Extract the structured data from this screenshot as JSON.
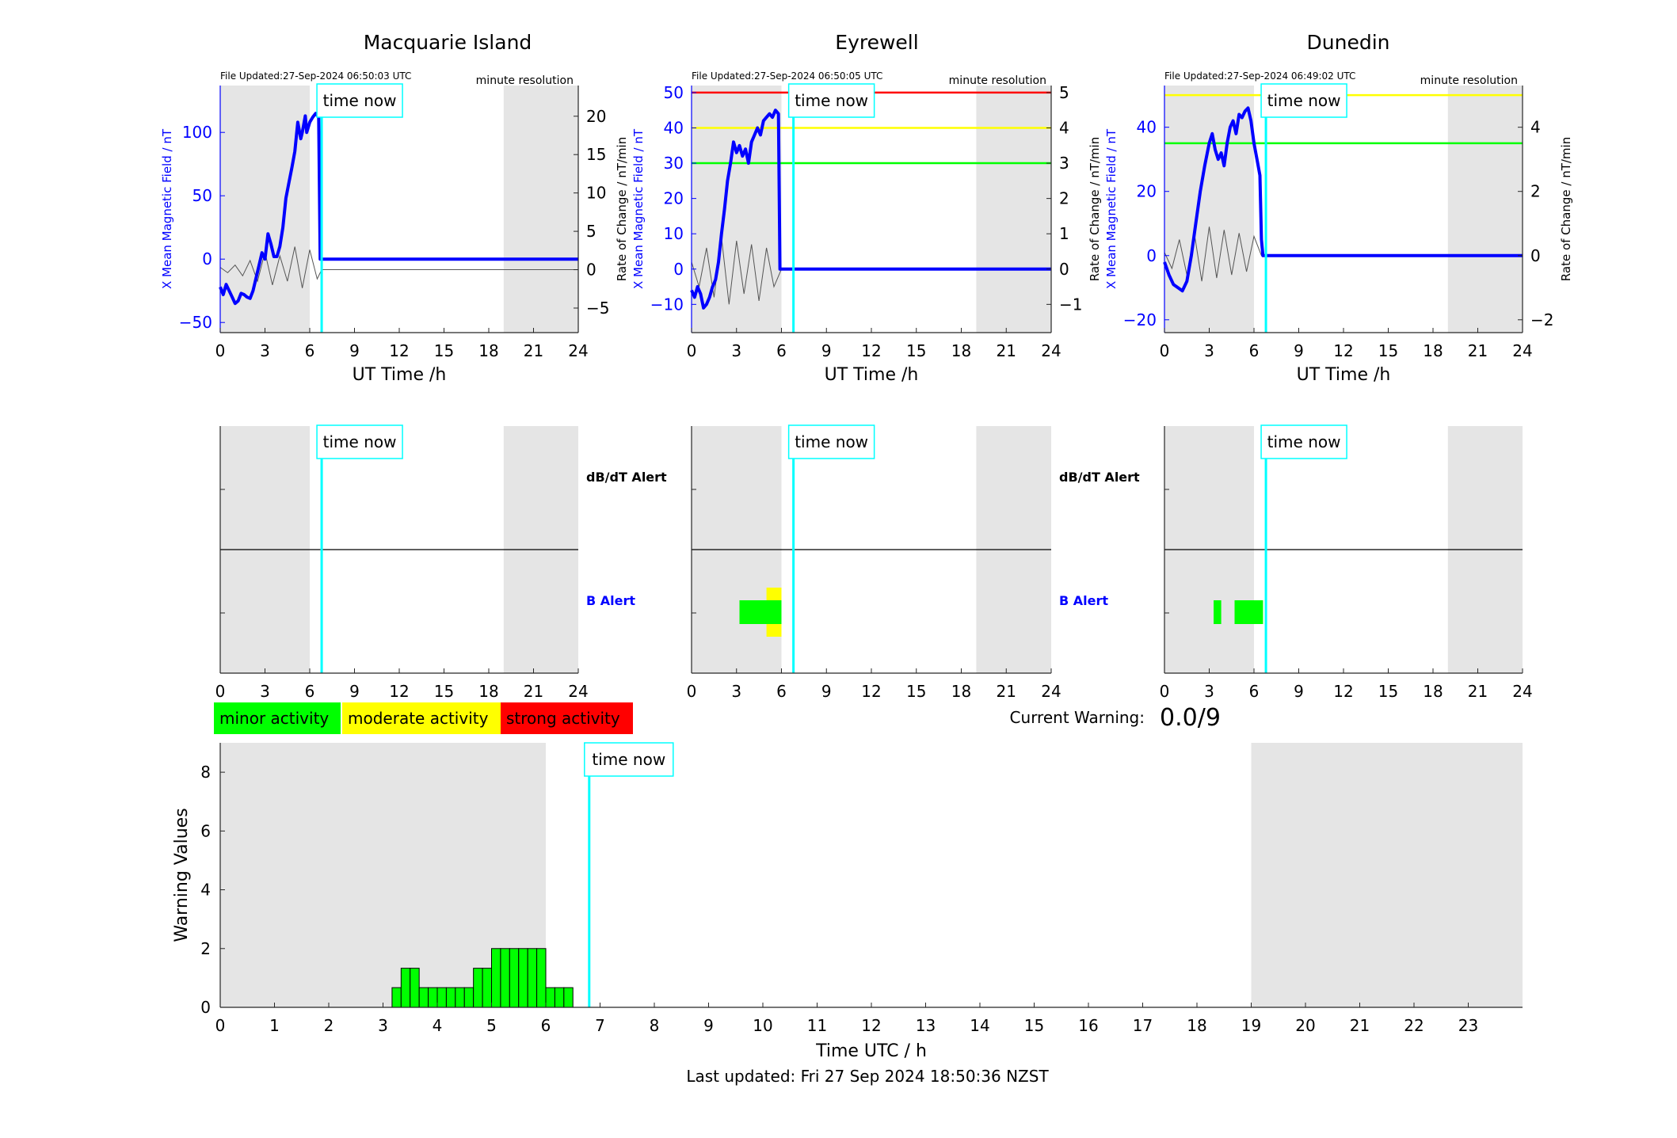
{
  "colors": {
    "night_shade": "#e5e5e5",
    "field_line": "#0000ff",
    "rate_line": "#555555",
    "time_now": "#00ffff",
    "minor": "#00ff00",
    "moderate": "#ffff00",
    "strong": "#ff0000",
    "bar_edge": "#007700"
  },
  "time_now_label": "time now",
  "legend": {
    "minor": "minor activity",
    "moderate": "moderate activity",
    "strong": "strong activity"
  },
  "current_warning": {
    "label": "Current Warning:",
    "value": "0.0/9"
  },
  "footer": "Last updated: Fri 27 Sep 2024 18:50:36 NZST",
  "chart_data": [
    {
      "type": "line",
      "title": "Macquarie Island",
      "file_updated": "File Updated:27-Sep-2024 06:50:03 UTC",
      "resolution": "minute resolution",
      "xlabel": "UT Time /h",
      "ylabel": "X Mean Magnetic Field / nT",
      "y2label": "Rate of Change / nT/min",
      "xlim": [
        0,
        24
      ],
      "ylim": [
        -58,
        137
      ],
      "y2lim": [
        -8.2,
        24
      ],
      "xticks": [
        0,
        3,
        6,
        9,
        12,
        15,
        18,
        21,
        24
      ],
      "yticks": [
        -50,
        0,
        50,
        100
      ],
      "y2ticks": [
        -5,
        0,
        5,
        10,
        15,
        20
      ],
      "night_bands": [
        [
          0,
          6
        ],
        [
          19,
          24
        ]
      ],
      "time_now": 6.8,
      "thresholds": [],
      "field_x": [
        0,
        0.2,
        0.4,
        0.6,
        0.8,
        1.0,
        1.2,
        1.4,
        1.6,
        1.8,
        2.0,
        2.2,
        2.5,
        2.8,
        3.0,
        3.2,
        3.4,
        3.6,
        3.8,
        4.0,
        4.2,
        4.4,
        4.6,
        4.8,
        5.0,
        5.2,
        5.4,
        5.5,
        5.7,
        5.8,
        6.0,
        6.2,
        6.4,
        6.6,
        6.7,
        24
      ],
      "field_y": [
        -22,
        -28,
        -20,
        -25,
        -30,
        -35,
        -33,
        -27,
        -28,
        -30,
        -31,
        -25,
        -10,
        5,
        0,
        20,
        12,
        2,
        2,
        10,
        25,
        48,
        60,
        72,
        85,
        108,
        95,
        100,
        113,
        100,
        108,
        112,
        115,
        112,
        0,
        0
      ],
      "rate_x": [
        0,
        0.5,
        1,
        1.5,
        2,
        2.5,
        3,
        3.5,
        4,
        4.5,
        5,
        5.5,
        6,
        6.5,
        6.8,
        24
      ],
      "rate_y": [
        0.3,
        -0.4,
        0.6,
        -0.8,
        1.2,
        -1.5,
        2.3,
        -2.0,
        1.8,
        -1.5,
        3.0,
        -2.4,
        2.6,
        -1.2,
        0,
        0
      ],
      "alert_blocks": []
    },
    {
      "type": "line",
      "title": "Eyrewell",
      "file_updated": "File Updated:27-Sep-2024 06:50:05 UTC",
      "resolution": "minute resolution",
      "xlabel": "UT Time /h",
      "ylabel": "X Mean Magnetic Field / nT",
      "y2label": "Rate of Change / nT/min",
      "xlim": [
        0,
        24
      ],
      "ylim": [
        -18,
        52
      ],
      "y2lim": [
        -1.8,
        5.2
      ],
      "xticks": [
        0,
        3,
        6,
        9,
        12,
        15,
        18,
        21,
        24
      ],
      "yticks": [
        -10,
        0,
        10,
        20,
        30,
        40,
        50
      ],
      "y2ticks": [
        -1,
        0,
        1,
        2,
        3,
        4,
        5
      ],
      "night_bands": [
        [
          0,
          6
        ],
        [
          19,
          24
        ]
      ],
      "time_now": 6.8,
      "thresholds": [
        {
          "value": 50,
          "color": "#ff0000"
        },
        {
          "value": 40,
          "color": "#ffff00"
        },
        {
          "value": 30,
          "color": "#00ff00"
        }
      ],
      "field_x": [
        0,
        0.2,
        0.4,
        0.6,
        0.8,
        1.0,
        1.2,
        1.4,
        1.6,
        1.8,
        2.0,
        2.2,
        2.4,
        2.6,
        2.8,
        3.0,
        3.2,
        3.4,
        3.6,
        3.8,
        4.0,
        4.2,
        4.4,
        4.6,
        4.8,
        5.0,
        5.2,
        5.4,
        5.6,
        5.8,
        5.9,
        24
      ],
      "field_y": [
        -6,
        -8,
        -5,
        -7,
        -11,
        -10,
        -8,
        -5,
        -3,
        2,
        10,
        17,
        25,
        30,
        36,
        33,
        35,
        32,
        34,
        30,
        36,
        38,
        40,
        38,
        42,
        43,
        44,
        43,
        45,
        44,
        0,
        0
      ],
      "rate_x": [
        0,
        0.5,
        1,
        1.5,
        2,
        2.5,
        3,
        3.5,
        4,
        4.5,
        5,
        5.5,
        6,
        24
      ],
      "rate_y": [
        0.2,
        -0.5,
        0.6,
        -0.8,
        0.9,
        -1.0,
        0.8,
        -0.7,
        0.7,
        -0.9,
        0.6,
        -0.5,
        0,
        0
      ],
      "alert_blocks": [
        {
          "level": "B",
          "x0": 3.2,
          "x1": 6.0,
          "color": "#00ff00"
        },
        {
          "level": "B",
          "x0": 5.0,
          "x1": 6.0,
          "color": "#ffff00",
          "tall": true
        }
      ]
    },
    {
      "type": "line",
      "title": "Dunedin",
      "file_updated": "File Updated:27-Sep-2024 06:49:02 UTC",
      "resolution": "minute resolution",
      "xlabel": "UT Time /h",
      "ylabel": "X Mean Magnetic Field / nT",
      "y2label": "Rate of Change / nT/min",
      "xlim": [
        0,
        24
      ],
      "ylim": [
        -24,
        53
      ],
      "y2lim": [
        -2.4,
        5.3
      ],
      "xticks": [
        0,
        3,
        6,
        9,
        12,
        15,
        18,
        21,
        24
      ],
      "yticks": [
        -20,
        0,
        20,
        40
      ],
      "y2ticks": [
        -2,
        0,
        2,
        4
      ],
      "night_bands": [
        [
          0,
          6
        ],
        [
          19,
          24
        ]
      ],
      "time_now": 6.8,
      "thresholds": [
        {
          "value": 50,
          "color": "#ffff00"
        },
        {
          "value": 35,
          "color": "#00ff00"
        }
      ],
      "field_x": [
        0,
        0.3,
        0.6,
        0.9,
        1.2,
        1.5,
        1.8,
        2.1,
        2.4,
        2.7,
        3.0,
        3.2,
        3.4,
        3.6,
        3.8,
        4.0,
        4.2,
        4.4,
        4.6,
        4.8,
        5.0,
        5.2,
        5.4,
        5.6,
        5.8,
        6.0,
        6.2,
        6.4,
        6.5,
        6.6,
        24
      ],
      "field_y": [
        -2,
        -6,
        -9,
        -10,
        -11,
        -8,
        0,
        10,
        20,
        28,
        35,
        38,
        33,
        30,
        32,
        28,
        35,
        40,
        42,
        38,
        44,
        43,
        45,
        46,
        42,
        35,
        30,
        25,
        5,
        0,
        0
      ],
      "rate_x": [
        0,
        0.5,
        1,
        1.5,
        2,
        2.5,
        3,
        3.5,
        4,
        4.5,
        5,
        5.5,
        6,
        6.5,
        24
      ],
      "rate_y": [
        0.1,
        -0.4,
        0.5,
        -0.6,
        0.7,
        -0.8,
        0.9,
        -0.7,
        0.8,
        -0.6,
        0.7,
        -0.5,
        0.6,
        0,
        0
      ],
      "alert_blocks": [
        {
          "level": "B",
          "x0": 3.3,
          "x1": 3.8,
          "color": "#00ff00"
        },
        {
          "level": "B",
          "x0": 4.7,
          "x1": 6.6,
          "color": "#00ff00"
        }
      ]
    },
    {
      "type": "bar",
      "xlabel": "Time UTC / h",
      "ylabel": "Warning Values",
      "xlim": [
        0,
        24
      ],
      "ylim": [
        0,
        9
      ],
      "xticks": [
        0,
        1,
        2,
        3,
        4,
        5,
        6,
        7,
        8,
        9,
        10,
        11,
        12,
        13,
        14,
        15,
        16,
        17,
        18,
        19,
        20,
        21,
        22,
        23
      ],
      "yticks": [
        0,
        2,
        4,
        6,
        8
      ],
      "night_bands": [
        [
          0,
          6
        ],
        [
          19,
          24
        ]
      ],
      "time_now": 6.8,
      "bar_width": 0.1667,
      "bar_x": [
        3.1667,
        3.3333,
        3.5,
        3.6667,
        3.8333,
        4.0,
        4.1667,
        4.3333,
        4.5,
        4.6667,
        4.8333,
        5.0,
        5.1667,
        5.3333,
        5.5,
        5.6667,
        5.8333,
        6.0,
        6.1667,
        6.3333
      ],
      "bar_values": [
        0.67,
        1.33,
        1.33,
        0.67,
        0.67,
        0.67,
        0.67,
        0.67,
        0.67,
        1.33,
        1.33,
        2,
        2,
        2,
        2,
        2,
        2,
        0.67,
        0.67,
        0.67
      ]
    }
  ]
}
